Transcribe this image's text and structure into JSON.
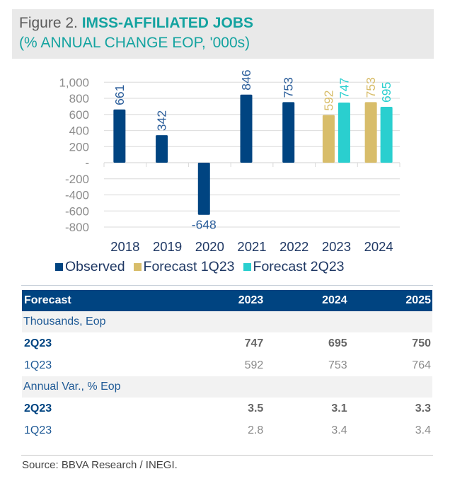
{
  "header": {
    "figure_label": "Figure 2.",
    "title": "IMSS-AFFILIATED JOBS",
    "subtitle": "(% ANNUAL CHANGE EOP, '000s)"
  },
  "colors": {
    "observed": "#004481",
    "forecast_1q23": "#d8bd6a",
    "forecast_2q23": "#2acfcf",
    "title_accent": "#14a3a0"
  },
  "chart_data": {
    "type": "bar",
    "title": "IMSS-AFFILIATED JOBS (% ANNUAL CHANGE EOP, '000s)",
    "xlabel": "",
    "ylabel": "",
    "categories": [
      "2018",
      "2019",
      "2020",
      "2021",
      "2022",
      "2023",
      "2024"
    ],
    "ylim": [
      -800,
      1000
    ],
    "yticks": [
      1000,
      800,
      600,
      400,
      200,
      0,
      -200,
      -400,
      -600,
      -800
    ],
    "ytick_labels": [
      "1,000",
      "800",
      "600",
      "400",
      "200",
      "-",
      "-200",
      "-400",
      "-600",
      "-800"
    ],
    "grid": true,
    "legend_position": "bottom",
    "series": [
      {
        "name": "Observed",
        "color": "#004481",
        "points": [
          {
            "category": "2018",
            "value": 661,
            "label": "661"
          },
          {
            "category": "2019",
            "value": 342,
            "label": "342"
          },
          {
            "category": "2020",
            "value": -648,
            "label": "-648"
          },
          {
            "category": "2021",
            "value": 846,
            "label": "846"
          },
          {
            "category": "2022",
            "value": 753,
            "label": "753"
          }
        ]
      },
      {
        "name": "Forecast 1Q23",
        "color": "#d8bd6a",
        "points": [
          {
            "category": "2023",
            "value": 592,
            "label": "592"
          },
          {
            "category": "2024",
            "value": 753,
            "label": "753"
          }
        ]
      },
      {
        "name": "Forecast 2Q23",
        "color": "#2acfcf",
        "points": [
          {
            "category": "2023",
            "value": 747,
            "label": "747"
          },
          {
            "category": "2024",
            "value": 695,
            "label": "695"
          }
        ]
      }
    ]
  },
  "legend": [
    {
      "label": "Observed",
      "color": "#004481"
    },
    {
      "label": "Forecast 1Q23",
      "color": "#d8bd6a"
    },
    {
      "label": "Forecast 2Q23",
      "color": "#2acfcf"
    }
  ],
  "table": {
    "headers": [
      "Forecast",
      "2023",
      "2024",
      "2025"
    ],
    "sections": [
      {
        "title": "Thousands, Eop",
        "rows": [
          {
            "label": "2Q23",
            "bold": true,
            "values": [
              "747",
              "695",
              "750"
            ]
          },
          {
            "label": "1Q23",
            "bold": false,
            "values": [
              "592",
              "753",
              "764"
            ]
          }
        ]
      },
      {
        "title": "Annual Var., % Eop",
        "rows": [
          {
            "label": "2Q23",
            "bold": true,
            "values": [
              "3.5",
              "3.1",
              "3.3"
            ]
          },
          {
            "label": "1Q23",
            "bold": false,
            "values": [
              "2.8",
              "3.4",
              "3.4"
            ]
          }
        ]
      }
    ]
  },
  "source": "Source: BBVA Research / INEGI."
}
